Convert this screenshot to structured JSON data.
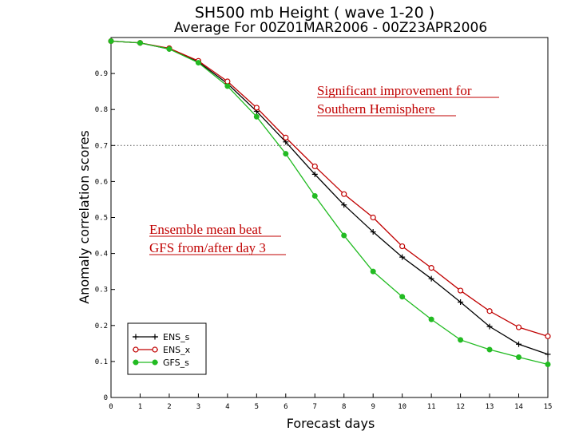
{
  "chart_data": {
    "type": "line",
    "title": "SH500 mb Height ( wave 1-20 )",
    "subtitle": "Average For 00Z01MAR2006 - 00Z23APR2006",
    "xlabel": "Forecast days",
    "ylabel": "Anomaly correlation scores",
    "xlim": [
      0,
      15
    ],
    "ylim": [
      0,
      1
    ],
    "x_ticks": [
      "0",
      "1",
      "2",
      "3",
      "4",
      "5",
      "6",
      "7",
      "8",
      "9",
      "10",
      "11",
      "12",
      "13",
      "14",
      "15"
    ],
    "y_ticks": [
      "0",
      "0.1",
      "0.2",
      "0.3",
      "0.4",
      "0.5",
      "0.6",
      "0.7",
      "0.8",
      "0.9"
    ],
    "reference_line": 0.7,
    "x": [
      0,
      1,
      2,
      3,
      4,
      5,
      6,
      7,
      8,
      9,
      10,
      11,
      12,
      13,
      14,
      15
    ],
    "series": [
      {
        "name": "ENS_s",
        "color": "#000000",
        "marker": "plus",
        "values": [
          0.99,
          0.985,
          0.968,
          0.932,
          0.872,
          0.795,
          0.71,
          0.62,
          0.535,
          0.46,
          0.39,
          0.33,
          0.265,
          0.197,
          0.148,
          0.12
        ]
      },
      {
        "name": "ENS_x",
        "color": "#c00000",
        "marker": "circle",
        "values": [
          0.99,
          0.985,
          0.97,
          0.935,
          0.878,
          0.805,
          0.722,
          0.642,
          0.565,
          0.5,
          0.42,
          0.36,
          0.297,
          0.24,
          0.195,
          0.17
        ]
      },
      {
        "name": "GFS_s",
        "color": "#22bb22",
        "marker": "dot",
        "values": [
          0.99,
          0.985,
          0.968,
          0.93,
          0.865,
          0.78,
          0.677,
          0.56,
          0.45,
          0.35,
          0.28,
          0.217,
          0.16,
          0.133,
          0.112,
          0.092
        ]
      }
    ],
    "annotations": [
      {
        "text_lines": [
          "Significant improvement for",
          "Southern Hemisphere"
        ],
        "color": "#c00000"
      },
      {
        "text_lines": [
          "Ensemble mean beat",
          "GFS from/after day 3"
        ],
        "color": "#c00000"
      }
    ],
    "legend_position": "bottom-left"
  }
}
